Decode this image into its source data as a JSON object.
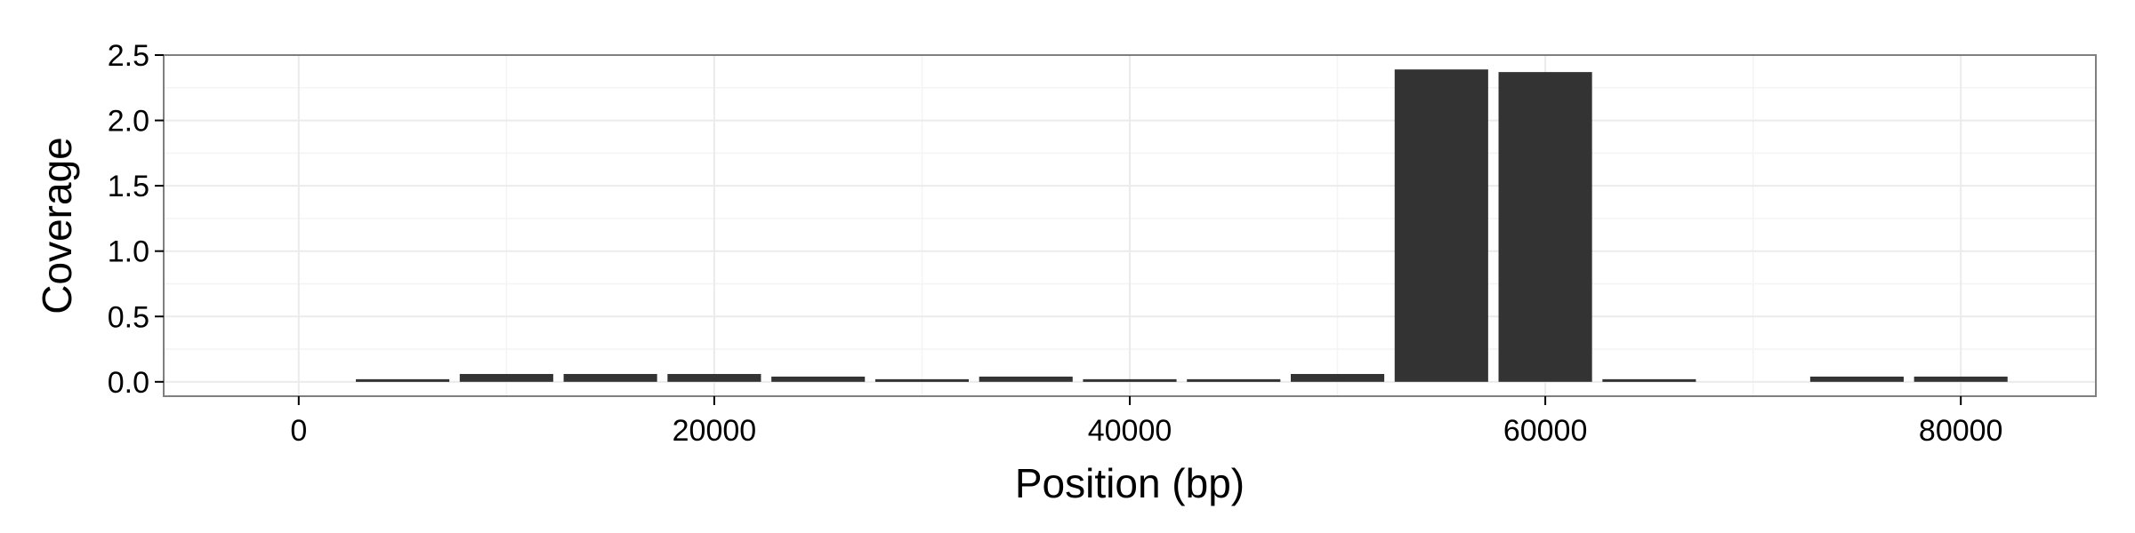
{
  "chart_data": {
    "type": "bar",
    "xlabel": "Position (bp)",
    "ylabel": "Coverage",
    "xlim": [
      -6500,
      86500
    ],
    "ylim": [
      -0.11,
      2.5
    ],
    "x_ticks": [
      "0",
      "20000",
      "40000",
      "60000",
      "80000"
    ],
    "y_ticks": [
      "0.0",
      "0.5",
      "1.0",
      "1.5",
      "2.0",
      "2.5"
    ],
    "bin_width": 4500,
    "x": [
      0,
      5000,
      10000,
      15000,
      20000,
      25000,
      30000,
      35000,
      40000,
      45000,
      50000,
      55000,
      60000,
      65000,
      70000,
      75000,
      80000
    ],
    "values": [
      0.0,
      0.02,
      0.06,
      0.06,
      0.06,
      0.04,
      0.02,
      0.04,
      0.02,
      0.02,
      0.06,
      2.39,
      2.37,
      0.02,
      0.0,
      0.04,
      0.04
    ],
    "grid": true,
    "colors": {
      "bar": "#333333",
      "panel_background": "#ffffff",
      "panel_border": "#7f7f7f",
      "grid_major": "#ebebeb",
      "grid_minor": "#f4f4f4",
      "tick": "#000000"
    }
  }
}
